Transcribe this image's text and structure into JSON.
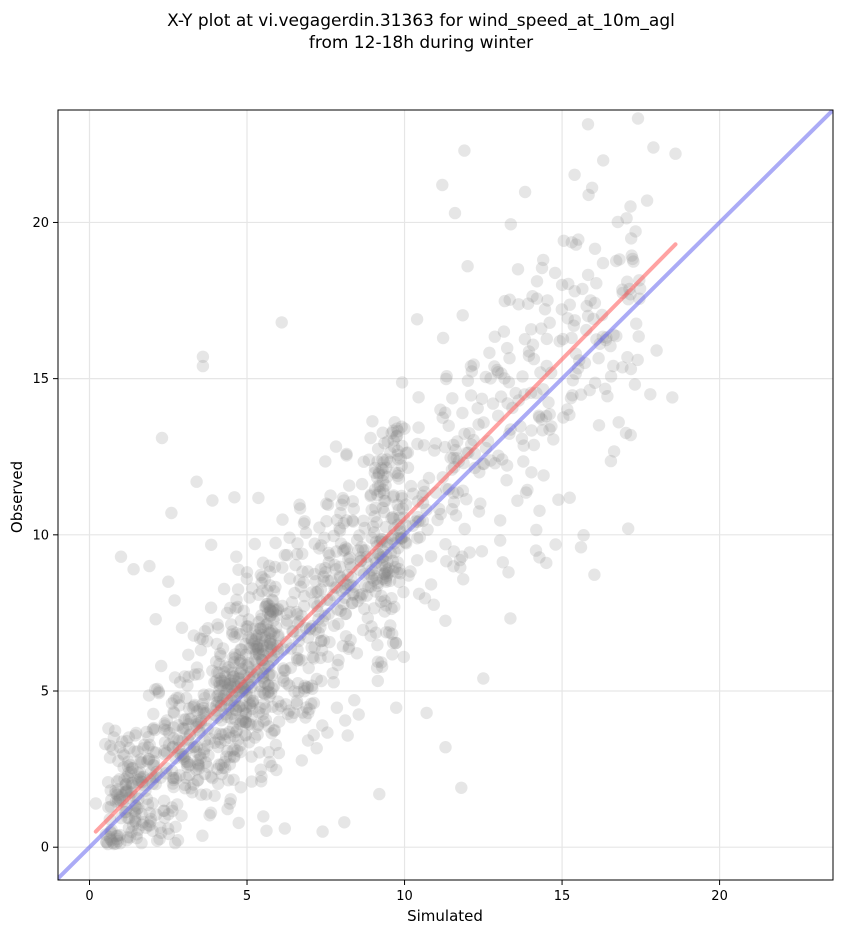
{
  "chart_data": {
    "type": "scatter",
    "title_lines": [
      "X-Y plot at vi.vegagerdin.31363 for wind_speed_at_10m_agl",
      "from 12-18h during winter"
    ],
    "xlabel": "Simulated",
    "ylabel": "Observed",
    "xlim": [
      -1.0,
      23.6
    ],
    "ylim": [
      -1.05,
      23.6
    ],
    "xticks": [
      0,
      5,
      10,
      15,
      20
    ],
    "yticks": [
      0,
      5,
      10,
      15,
      20
    ],
    "grid": true,
    "point_color": "#808080",
    "generated_point_count": 1400,
    "points": [
      [
        17.9,
        22.4
      ],
      [
        18.6,
        22.2
      ],
      [
        11.9,
        22.3
      ],
      [
        11.2,
        21.2
      ],
      [
        11.6,
        20.3
      ],
      [
        17.7,
        20.7
      ],
      [
        6.1,
        16.8
      ],
      [
        3.6,
        15.7
      ],
      [
        3.6,
        15.4
      ],
      [
        2.3,
        13.1
      ],
      [
        1.0,
        9.3
      ],
      [
        1.4,
        8.9
      ],
      [
        1.9,
        9.0
      ],
      [
        2.5,
        8.5
      ],
      [
        2.7,
        7.9
      ],
      [
        2.6,
        10.7
      ],
      [
        3.4,
        11.7
      ],
      [
        3.9,
        11.1
      ],
      [
        4.6,
        11.2
      ],
      [
        2.1,
        7.3
      ],
      [
        12.5,
        5.4
      ],
      [
        10.7,
        4.3
      ],
      [
        11.3,
        3.2
      ],
      [
        11.8,
        1.9
      ],
      [
        9.2,
        1.7
      ],
      [
        15.6,
        9.6
      ],
      [
        17.1,
        10.2
      ],
      [
        14.5,
        9.1
      ],
      [
        13.3,
        8.8
      ],
      [
        7.4,
        0.5
      ],
      [
        6.2,
        0.6
      ],
      [
        0.2,
        1.4
      ],
      [
        0.6,
        3.8
      ],
      [
        0.5,
        3.3
      ],
      [
        18.5,
        14.4
      ],
      [
        17.8,
        14.5
      ],
      [
        18.0,
        15.9
      ],
      [
        17.4,
        15.6
      ],
      [
        16.3,
        18.7
      ],
      [
        14.4,
        18.8
      ],
      [
        13.6,
        18.5
      ],
      [
        12.0,
        18.6
      ],
      [
        15.0,
        18.0
      ],
      [
        15.4,
        17.8
      ],
      [
        10.4,
        16.9
      ]
    ],
    "fit_line": {
      "color": "#ff5555",
      "x": [
        0.2,
        18.6
      ],
      "y": [
        0.5,
        19.3
      ]
    },
    "identity_line": {
      "color": "#6666ee",
      "x": [
        -1.0,
        23.6
      ],
      "y": [
        -1.0,
        23.6
      ]
    }
  }
}
